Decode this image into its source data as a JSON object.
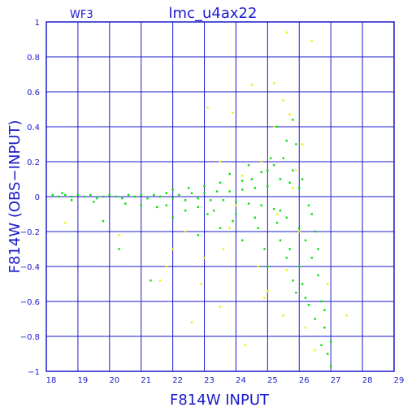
{
  "chart_data": {
    "type": "scatter",
    "title": "lmc_u4ax22",
    "corner_label": "WF3",
    "xlabel": "F814W INPUT",
    "ylabel": "F814W (OBS−INPUT)",
    "xlim": [
      18,
      29
    ],
    "ylim": [
      -1,
      1
    ],
    "x_ticks": [
      18,
      19,
      20,
      21,
      22,
      23,
      24,
      25,
      26,
      27,
      28,
      29
    ],
    "x_tick_labels": [
      "18",
      "19",
      "20",
      "21",
      "22",
      "23",
      "24",
      "25",
      "26",
      "27",
      "28",
      "29"
    ],
    "y_ticks": [
      1,
      0.8,
      0.6,
      0.4,
      0.2,
      0,
      -0.2,
      -0.4,
      -0.6,
      -0.8,
      -1
    ],
    "y_tick_labels": [
      "1",
      "0.8",
      "0.6",
      "0.4",
      "0.2",
      "0",
      "−0.2",
      "−0.4",
      "−0.6",
      "−0.8",
      "−1"
    ],
    "grid": true,
    "colors": {
      "axis": "#1a1acc",
      "series_green": "#00e000",
      "series_yellow": "#f0f000"
    },
    "series": [
      {
        "color": "#00e000",
        "points": [
          [
            18.2,
            0.01
          ],
          [
            18.4,
            0.0
          ],
          [
            18.6,
            0.01
          ],
          [
            18.8,
            0.0
          ],
          [
            19.0,
            0.01
          ],
          [
            19.2,
            0.0
          ],
          [
            19.4,
            0.01
          ],
          [
            19.6,
            -0.01
          ],
          [
            19.8,
            0.0
          ],
          [
            20.0,
            0.01
          ],
          [
            20.2,
            0.0
          ],
          [
            20.4,
            -0.01
          ],
          [
            20.6,
            0.01
          ],
          [
            20.8,
            0.0
          ],
          [
            21.0,
            0.01
          ],
          [
            21.2,
            -0.01
          ],
          [
            21.4,
            0.01
          ],
          [
            21.6,
            0.0
          ],
          [
            21.8,
            0.02
          ],
          [
            22.0,
            -0.01
          ],
          [
            22.2,
            0.01
          ],
          [
            22.4,
            -0.02
          ],
          [
            22.6,
            0.02
          ],
          [
            22.8,
            -0.01
          ],
          [
            23.0,
            0.02
          ],
          [
            23.2,
            -0.02
          ],
          [
            23.4,
            0.03
          ],
          [
            23.6,
            -0.02
          ],
          [
            23.8,
            0.03
          ],
          [
            24.0,
            -0.03
          ],
          [
            24.2,
            0.04
          ],
          [
            24.4,
            -0.04
          ],
          [
            24.6,
            0.05
          ],
          [
            24.8,
            -0.05
          ],
          [
            25.0,
            0.06
          ],
          [
            25.2,
            -0.07
          ],
          [
            25.4,
            0.1
          ],
          [
            25.6,
            -0.12
          ],
          [
            25.8,
            0.15
          ],
          [
            26.0,
            -0.18
          ],
          [
            26.1,
            0.1
          ],
          [
            26.2,
            -0.25
          ],
          [
            26.3,
            -0.05
          ],
          [
            26.4,
            -0.35
          ],
          [
            26.5,
            -0.2
          ],
          [
            26.6,
            -0.45
          ],
          [
            26.7,
            -0.6
          ],
          [
            26.8,
            -0.75
          ],
          [
            26.9,
            -0.9
          ],
          [
            27.0,
            -0.97
          ],
          [
            25.3,
            0.4
          ],
          [
            25.6,
            0.32
          ],
          [
            25.8,
            0.44
          ],
          [
            25.5,
            0.22
          ],
          [
            25.9,
            0.3
          ],
          [
            25.2,
            0.18
          ],
          [
            25.0,
            0.15
          ],
          [
            24.8,
            0.14
          ],
          [
            24.5,
            0.1
          ],
          [
            24.2,
            0.09
          ],
          [
            23.5,
            0.08
          ],
          [
            23.0,
            0.06
          ],
          [
            22.5,
            0.05
          ],
          [
            22.0,
            0.04
          ],
          [
            25.7,
            -0.3
          ],
          [
            26.0,
            -0.4
          ],
          [
            25.9,
            -0.55
          ],
          [
            26.3,
            -0.62
          ],
          [
            26.5,
            -0.7
          ],
          [
            26.7,
            -0.85
          ],
          [
            24.0,
            -0.1
          ],
          [
            24.6,
            -0.12
          ],
          [
            23.3,
            -0.08
          ],
          [
            22.8,
            -0.06
          ],
          [
            21.5,
            -0.06
          ],
          [
            21.0,
            -0.05
          ],
          [
            20.5,
            -0.04
          ],
          [
            19.5,
            -0.03
          ],
          [
            18.8,
            -0.02
          ],
          [
            18.5,
            0.02
          ],
          [
            25.4,
            -0.25
          ],
          [
            25.6,
            -0.35
          ],
          [
            25.8,
            -0.48
          ],
          [
            26.1,
            -0.5
          ],
          [
            26.2,
            -0.58
          ],
          [
            26.8,
            -0.65
          ],
          [
            27.0,
            -0.83
          ],
          [
            26.6,
            -0.3
          ],
          [
            26.4,
            -0.1
          ],
          [
            26.0,
            0.05
          ],
          [
            22.0,
            -0.12
          ],
          [
            22.8,
            -0.22
          ],
          [
            23.5,
            -0.18
          ],
          [
            24.2,
            -0.25
          ],
          [
            24.9,
            -0.3
          ],
          [
            20.3,
            -0.3
          ],
          [
            19.8,
            -0.14
          ],
          [
            21.3,
            -0.48
          ],
          [
            25.0,
            -0.4
          ],
          [
            25.4,
            -0.08
          ],
          [
            23.8,
            0.13
          ],
          [
            24.4,
            0.18
          ],
          [
            25.1,
            0.22
          ],
          [
            25.7,
            0.08
          ],
          [
            25.3,
            -0.15
          ],
          [
            24.7,
            -0.18
          ],
          [
            23.9,
            -0.14
          ],
          [
            23.1,
            -0.1
          ],
          [
            22.4,
            -0.08
          ],
          [
            21.8,
            -0.05
          ]
        ]
      },
      {
        "color": "#f0f000",
        "points": [
          [
            25.6,
            0.94
          ],
          [
            26.4,
            0.89
          ],
          [
            25.2,
            0.65
          ],
          [
            24.5,
            0.64
          ],
          [
            25.5,
            0.55
          ],
          [
            25.7,
            0.47
          ],
          [
            23.1,
            0.51
          ],
          [
            23.9,
            0.48
          ],
          [
            25.2,
            0.4
          ],
          [
            26.1,
            0.3
          ],
          [
            24.8,
            0.2
          ],
          [
            25.9,
            0.15
          ],
          [
            23.8,
            -0.18
          ],
          [
            22.4,
            -0.2
          ],
          [
            22.0,
            -0.3
          ],
          [
            21.8,
            -0.4
          ],
          [
            20.3,
            -0.22
          ],
          [
            18.6,
            -0.15
          ],
          [
            22.9,
            -0.5
          ],
          [
            23.5,
            -0.63
          ],
          [
            24.3,
            -0.85
          ],
          [
            25.0,
            -0.54
          ],
          [
            25.5,
            -0.68
          ],
          [
            26.2,
            -0.75
          ],
          [
            27.5,
            -0.68
          ],
          [
            26.9,
            -0.5
          ],
          [
            24.7,
            -0.4
          ],
          [
            23.6,
            -0.3
          ],
          [
            21.6,
            -0.48
          ],
          [
            22.6,
            -0.72
          ],
          [
            25.3,
            -0.1
          ],
          [
            25.8,
            0.05
          ],
          [
            26.0,
            -0.2
          ],
          [
            24.0,
            -0.05
          ],
          [
            23.0,
            -0.35
          ],
          [
            25.6,
            -0.42
          ],
          [
            24.9,
            -0.58
          ],
          [
            26.5,
            -0.88
          ],
          [
            23.5,
            0.2
          ],
          [
            24.2,
            0.12
          ]
        ]
      }
    ]
  }
}
